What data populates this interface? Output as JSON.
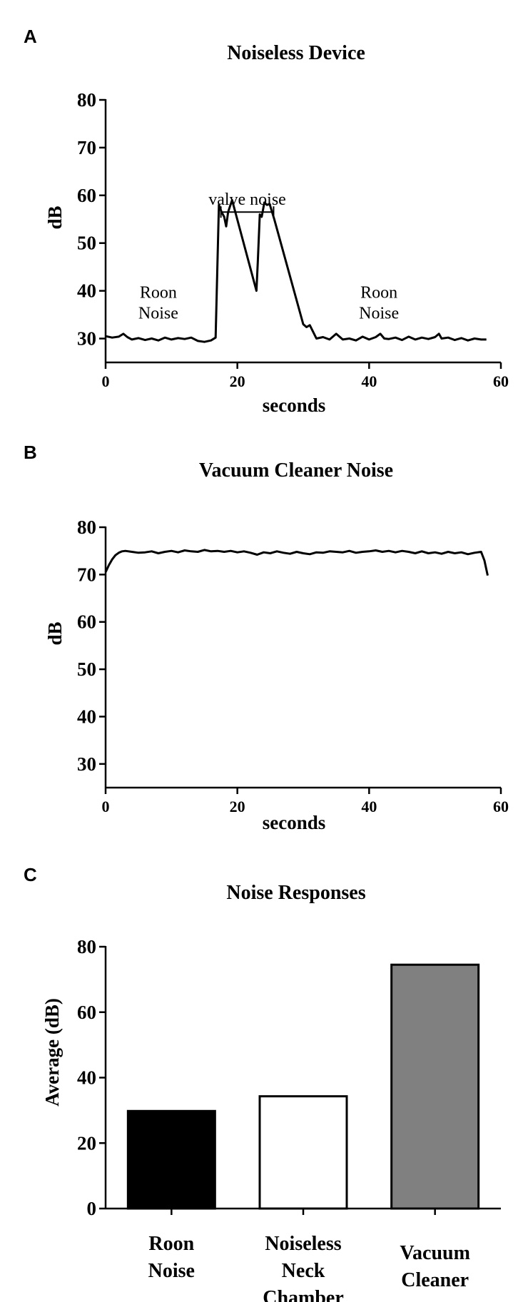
{
  "chart_data": [
    {
      "panel": "A",
      "type": "line",
      "title": "Noiseless Device",
      "xlabel": "seconds",
      "ylabel": "dB",
      "xlim": [
        0,
        60
      ],
      "ylim": [
        25,
        80
      ],
      "xticks": [
        "0",
        "20",
        "40",
        "60"
      ],
      "yticks": [
        "30",
        "40",
        "50",
        "60",
        "70",
        "80"
      ],
      "grid": false,
      "annotations": [
        {
          "text": "valve noise",
          "x_start": 17.5,
          "x_end": 25.5,
          "y": 56.5
        },
        {
          "text": "Roon",
          "x": 8,
          "y": 38.5
        },
        {
          "text": "Noise",
          "x": 8,
          "y": 34.2
        },
        {
          "text": "Roon",
          "x": 41.5,
          "y": 38.5
        },
        {
          "text": "Noise",
          "x": 41.5,
          "y": 34.2
        }
      ],
      "series": [
        {
          "x": [
            0,
            1,
            2,
            2.7,
            3.3,
            4,
            5,
            6,
            7,
            8,
            9,
            10,
            11,
            12,
            13,
            14,
            15,
            16,
            16.7,
            17.2,
            17.6,
            18,
            18.3,
            18.6,
            19.2,
            22.9,
            23.1,
            23.4,
            23.7,
            24.1,
            24.5,
            24.9,
            25.6,
            30,
            30.5,
            31,
            32,
            33,
            34,
            35,
            36,
            37,
            38,
            39,
            40,
            41,
            41.7,
            42.3,
            43,
            44,
            45,
            46,
            47,
            48,
            49,
            50,
            50.6,
            51,
            52,
            53,
            54,
            55,
            56,
            57,
            57.8
          ],
          "y": [
            30.5,
            30.2,
            30.4,
            31,
            30.3,
            29.8,
            30.1,
            29.7,
            30.0,
            29.6,
            30.2,
            29.8,
            30.1,
            29.9,
            30.2,
            29.5,
            29.3,
            29.6,
            30.2,
            58.0,
            56.5,
            55.5,
            53.5,
            56.5,
            59.0,
            40.0,
            46,
            56.0,
            55.5,
            58.5,
            58.0,
            58.2,
            55.0,
            33.0,
            32.4,
            32.8,
            30.0,
            30.3,
            29.8,
            31.0,
            29.8,
            30.0,
            29.6,
            30.4,
            29.8,
            30.3,
            31.0,
            30.0,
            29.9,
            30.2,
            29.7,
            30.4,
            29.8,
            30.2,
            29.9,
            30.3,
            31.0,
            30.0,
            30.2,
            29.7,
            30.1,
            29.6,
            30.0,
            29.8,
            29.8
          ]
        }
      ]
    },
    {
      "panel": "B",
      "type": "line",
      "title": "Vacuum Cleaner Noise",
      "xlabel": "seconds",
      "ylabel": "dB",
      "xlim": [
        0,
        60
      ],
      "ylim": [
        25,
        80
      ],
      "xticks": [
        "0",
        "20",
        "40",
        "60"
      ],
      "yticks": [
        "30",
        "40",
        "50",
        "60",
        "70",
        "80"
      ],
      "grid": false,
      "series": [
        {
          "x": [
            0,
            0.5,
            1,
            1.5,
            2,
            2.5,
            3,
            4,
            5,
            6,
            7,
            8,
            9,
            10,
            11,
            12,
            13,
            14,
            15,
            16,
            17,
            18,
            19,
            20,
            21,
            22,
            23,
            24,
            25,
            26,
            27,
            28,
            29,
            30,
            31,
            32,
            33,
            34,
            35,
            36,
            37,
            38,
            39,
            40,
            41,
            42,
            43,
            44,
            45,
            46,
            47,
            48,
            49,
            50,
            51,
            52,
            53,
            54,
            55,
            56,
            57,
            57.5,
            58
          ],
          "y": [
            70.5,
            72.0,
            73.2,
            74.1,
            74.6,
            74.9,
            75.0,
            74.8,
            74.6,
            74.7,
            74.9,
            74.5,
            74.8,
            75.0,
            74.7,
            75.1,
            74.9,
            74.8,
            75.2,
            74.9,
            75.0,
            74.8,
            75.0,
            74.7,
            74.9,
            74.6,
            74.2,
            74.7,
            74.5,
            74.9,
            74.6,
            74.4,
            74.8,
            74.5,
            74.3,
            74.7,
            74.6,
            74.9,
            74.8,
            74.7,
            75.0,
            74.6,
            74.8,
            74.9,
            75.1,
            74.8,
            75.0,
            74.7,
            75.0,
            74.8,
            74.5,
            74.9,
            74.5,
            74.7,
            74.4,
            74.8,
            74.5,
            74.7,
            74.3,
            74.6,
            74.8,
            73.0,
            69.8
          ]
        }
      ]
    },
    {
      "panel": "C",
      "type": "bar",
      "title": "Noise Responses",
      "xlabel": "",
      "ylabel": "Average (dB)",
      "ylim": [
        0,
        80
      ],
      "yticks": [
        "0",
        "20",
        "40",
        "60",
        "80"
      ],
      "grid": false,
      "categories": [
        [
          "Roon",
          "Noise"
        ],
        [
          "Noiseless",
          "Neck",
          "Chamber"
        ],
        [
          "Vacuum",
          "Cleaner"
        ]
      ],
      "values": [
        29.8,
        34.3,
        74.5
      ],
      "colors": [
        "#000000",
        "#ffffff",
        "#808080"
      ]
    }
  ]
}
